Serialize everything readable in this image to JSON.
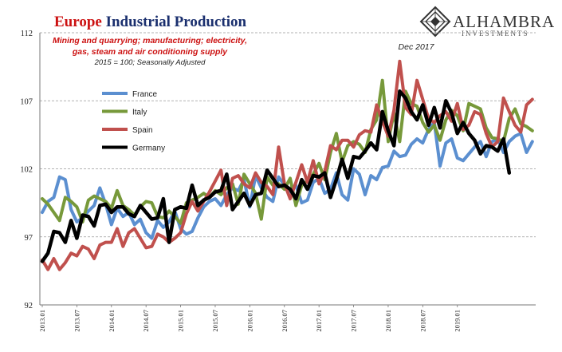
{
  "header": {
    "title_accent": "Europe",
    "title_rest": " Industrial Production",
    "subtitle_line1": "Mining and quarrying; manufacturing; electricity,",
    "subtitle_line2": "gas, steam and air conditioning supply",
    "subtitle_line3": "2015 = 100; Seasonally Adjusted",
    "accent_color": "#cc1111",
    "title_color": "#1a2f6e"
  },
  "logo": {
    "name": "ALHAMBRA",
    "sub": "INVESTMENTS"
  },
  "chart_data": {
    "type": "line",
    "title": "Europe Industrial Production",
    "annotation": "Dec 2017",
    "ylim": [
      92,
      112
    ],
    "yticks": [
      92,
      97,
      102,
      107,
      112
    ],
    "x_tick_labels": [
      "2013.01",
      "2013.07",
      "2014.01",
      "2014.07",
      "2015.01",
      "2015.07",
      "2016.01",
      "2016.07",
      "2017.01",
      "2017.07",
      "2018.01",
      "2018.07",
      "2019.01"
    ],
    "x_start": "2013.01",
    "grid": "horizontal dashed",
    "legend_position": "upper-left",
    "series": [
      {
        "name": "France",
        "color": "#5b8fd0",
        "values": [
          98.8,
          99.6,
          99.9,
          101.4,
          101.2,
          99.0,
          98.1,
          98.4,
          98.9,
          99.3,
          100.6,
          99.4,
          97.9,
          99.1,
          98.5,
          98.8,
          97.9,
          98.3,
          97.3,
          96.9,
          98.2,
          97.7,
          98.1,
          98.9,
          97.6,
          97.2,
          97.4,
          98.4,
          99.2,
          99.6,
          99.8,
          99.3,
          100.1,
          100.6,
          100.4,
          101.2,
          99.2,
          101.5,
          100.6,
          99.9,
          99.6,
          101.4,
          100.8,
          100.3,
          100.8,
          99.5,
          99.7,
          101.0,
          101.3,
          100.2,
          100.5,
          101.7,
          100.1,
          99.7,
          102.0,
          101.6,
          100.1,
          101.5,
          101.2,
          102.1,
          102.2,
          103.3,
          102.9,
          103.0,
          103.8,
          104.2,
          103.9,
          104.9,
          105.4,
          102.2,
          103.9,
          104.2,
          102.8,
          102.6,
          103.1,
          103.6,
          104.0,
          102.9,
          104.0,
          104.2,
          103.2,
          104.0,
          104.4,
          104.6,
          103.2,
          104.0
        ]
      },
      {
        "name": "Italy",
        "color": "#77993a",
        "values": [
          99.8,
          99.4,
          98.8,
          98.2,
          99.9,
          99.6,
          99.2,
          98.1,
          99.7,
          100.0,
          99.8,
          99.6,
          99.1,
          100.4,
          99.3,
          99.0,
          98.6,
          99.2,
          99.6,
          99.5,
          98.5,
          98.4,
          98.9,
          98.5,
          98.0,
          99.5,
          99.7,
          99.9,
          100.2,
          99.9,
          100.4,
          100.1,
          100.6,
          100.9,
          99.4,
          101.6,
          100.9,
          100.2,
          98.3,
          101.4,
          100.8,
          100.9,
          100.5,
          101.3,
          99.3,
          100.8,
          101.1,
          101.6,
          102.4,
          101.2,
          103.2,
          104.6,
          102.5,
          103.7,
          104.0,
          103.8,
          103.2,
          104.9,
          105.6,
          108.5,
          104.0,
          106.1,
          104.0,
          107.7,
          106.8,
          106.6,
          105.4,
          104.7,
          105.2,
          104.1,
          105.6,
          106.3,
          105.9,
          104.8,
          106.8,
          106.6,
          106.4,
          105.0,
          104.3,
          104.2,
          104.0,
          105.7,
          106.4,
          105.3,
          105.1,
          104.8
        ]
      },
      {
        "name": "Spain",
        "color": "#c0504d",
        "values": [
          95.3,
          94.6,
          95.4,
          94.6,
          95.1,
          95.8,
          95.6,
          96.3,
          96.1,
          95.4,
          96.4,
          96.6,
          96.6,
          97.6,
          96.3,
          97.3,
          97.6,
          96.9,
          96.2,
          96.3,
          97.2,
          97.0,
          96.6,
          96.9,
          97.3,
          98.7,
          99.6,
          98.9,
          99.6,
          100.3,
          101.1,
          101.9,
          99.3,
          101.3,
          101.5,
          100.9,
          100.6,
          101.7,
          101.0,
          100.7,
          100.1,
          103.6,
          100.9,
          99.8,
          101.0,
          102.3,
          101.0,
          102.6,
          100.9,
          101.8,
          103.7,
          103.4,
          104.1,
          104.1,
          103.6,
          104.5,
          104.8,
          104.7,
          106.7,
          105.5,
          104.4,
          106.3,
          109.9,
          106.5,
          106.0,
          108.5,
          107.1,
          105.7,
          105.4,
          105.9,
          106.2,
          105.5,
          106.8,
          104.9,
          105.2,
          106.2,
          106.0,
          104.6,
          103.6,
          104.0,
          107.2,
          106.2,
          105.2,
          104.7,
          106.7,
          107.1
        ]
      },
      {
        "name": "Germany",
        "color": "#000000",
        "values": [
          95.2,
          95.8,
          97.4,
          97.3,
          96.6,
          98.2,
          96.9,
          98.6,
          98.5,
          97.8,
          99.3,
          99.4,
          98.8,
          99.2,
          99.2,
          98.7,
          98.5,
          99.3,
          98.8,
          98.3,
          98.4,
          99.8,
          96.6,
          99.0,
          99.2,
          99.1,
          100.8,
          99.3,
          99.7,
          99.9,
          100.3,
          100.4,
          101.6,
          99.0,
          99.6,
          100.2,
          99.3,
          100.1,
          100.2,
          101.9,
          101.3,
          100.7,
          100.8,
          100.5,
          99.8,
          101.2,
          100.5,
          101.5,
          101.4,
          101.7,
          99.9,
          101.2,
          102.7,
          101.3,
          102.9,
          102.8,
          103.3,
          103.9,
          103.4,
          106.2,
          104.8,
          103.7,
          107.7,
          107.2,
          106.2,
          105.6,
          106.7,
          105.2,
          106.5,
          105.0,
          107.0,
          106.1,
          104.6,
          105.4,
          104.6,
          104.1,
          103.1,
          103.7,
          103.6,
          103.3,
          104.2,
          101.7
        ]
      }
    ]
  }
}
